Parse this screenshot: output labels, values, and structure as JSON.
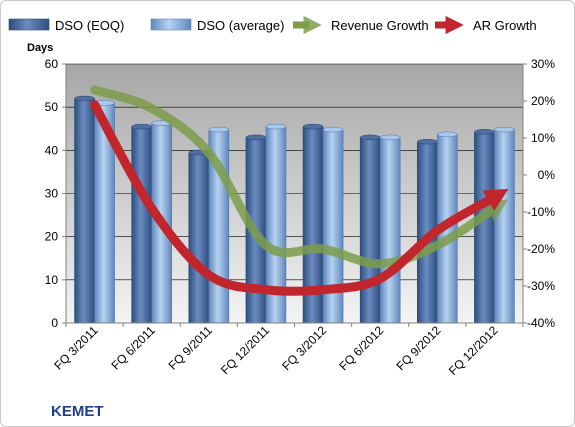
{
  "company_label": "KEMET",
  "chart_data": {
    "type": "bar",
    "categories": [
      "FQ 3/2011",
      "FQ 6/2011",
      "FQ 9/2011",
      "FQ 12/2011",
      "FQ 3/2012",
      "FQ 6/2012",
      "FQ 9/2012",
      "FQ 12/2012"
    ],
    "ylabel": "Days",
    "ylim": [
      0,
      60
    ],
    "yticks": [
      0,
      10,
      20,
      30,
      40,
      50,
      60
    ],
    "y2lim": [
      -40,
      30
    ],
    "y2ticks": [
      "-40%",
      "-30%",
      "-20%",
      "-10%",
      "0%",
      "10%",
      "20%",
      "30%"
    ],
    "grid": true,
    "legend_position": "top",
    "series": [
      {
        "name": "DSO (EOQ)",
        "kind": "bar",
        "axis": "left",
        "color": "#4f6fa0",
        "values": [
          52,
          45.5,
          39.5,
          43,
          45.5,
          43,
          42,
          44.3
        ]
      },
      {
        "name": "DSO (average)",
        "kind": "bar",
        "axis": "left",
        "color": "#8fb4de",
        "values": [
          51,
          46.3,
          44.8,
          45.5,
          44.8,
          43,
          43.7,
          44.8
        ]
      },
      {
        "name": "Revenue Growth",
        "kind": "line",
        "axis": "right",
        "unit": "%",
        "color": "#7d9d4b",
        "values": [
          23,
          18,
          6,
          -19,
          -20,
          -24,
          -19,
          -9
        ]
      },
      {
        "name": "AR Growth",
        "kind": "line",
        "axis": "right",
        "unit": "%",
        "color": "#c0262c",
        "values": [
          19,
          -9,
          -27,
          -31,
          -31,
          -28,
          -15,
          -6
        ]
      }
    ]
  }
}
